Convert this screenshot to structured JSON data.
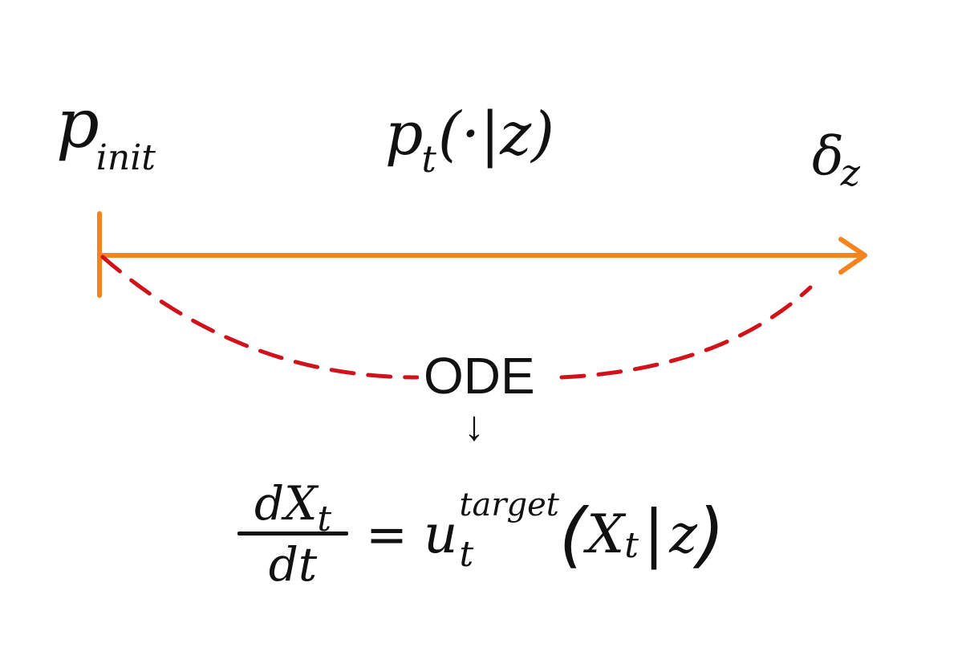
{
  "labels": {
    "start": {
      "symbol": "p",
      "subscript": "init"
    },
    "middle": {
      "symbol": "p",
      "subscript": "t",
      "argument": "(·|z)"
    },
    "end": {
      "symbol": "δ",
      "subscript": "z"
    }
  },
  "curve_label": "ODE",
  "down_arrow": "↓",
  "equation": {
    "numerator": "dX",
    "numerator_sub": "t",
    "denominator": "dt",
    "equals": "=",
    "field": "u",
    "field_sup": "target",
    "field_sub": "t",
    "open_paren": "(",
    "arg": "X",
    "arg_sub": "t",
    "separator": "|",
    "condition": "z",
    "close_paren": ")"
  },
  "colors": {
    "arrow": "#F5841F",
    "dashed_curve": "#D0121B",
    "text": "#111111",
    "background": "#FFFFFF"
  }
}
